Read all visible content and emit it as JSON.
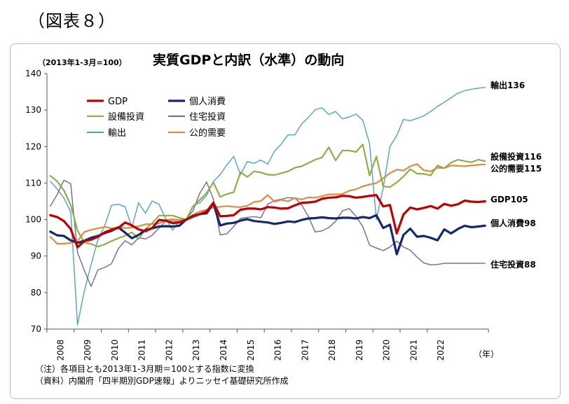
{
  "figure_label": "（図表８）",
  "notes": [
    "（注）各項目とも2013年1-3月期＝100とする指数に変換",
    "（資料）内閣府「四半期別GDP速報」よりニッセイ基礎研究所作成"
  ],
  "chart_data": {
    "type": "line",
    "title": "実質GDPと内訳（水準）の動向",
    "unit_label": "（2013年1-3月=100）",
    "xlabel": "（年）",
    "ylim": [
      70,
      140
    ],
    "y_ticks": [
      70,
      80,
      90,
      100,
      110,
      120,
      130,
      140
    ],
    "x_start": "2008Q1",
    "x_tick_labels": [
      "2008",
      "2009",
      "2010",
      "2011",
      "2012",
      "2013",
      "2014",
      "2015",
      "2016",
      "2017",
      "2018",
      "2019",
      "2020",
      "2021",
      "2022"
    ],
    "legend_position": "top-left",
    "grid": false,
    "series": [
      {
        "name": "GDP",
        "color": "#c00000",
        "width": 3.2,
        "end_label": "GDP105",
        "values": [
          101.2,
          100.7,
          99.6,
          97.4,
          92.4,
          94.1,
          94.5,
          95.3,
          96.5,
          97.2,
          97.7,
          99.2,
          98.4,
          97.3,
          96.8,
          97.7,
          99.9,
          99.7,
          99.0,
          99.2,
          100,
          100.8,
          101.5,
          102.2,
          104.6,
          100.9,
          101.0,
          101.2,
          102.7,
          103.0,
          103.0,
          102.8,
          103.4,
          103.3,
          103.0,
          103.1,
          103.9,
          104.6,
          104.7,
          104.9,
          105.7,
          106.0,
          106.1,
          106.5,
          106.4,
          106.0,
          106.2,
          106.5,
          106.7,
          103.6,
          104.0,
          96.2,
          101.4,
          103.3,
          102.8,
          103.2,
          103.7,
          103.0,
          104.3,
          103.8,
          104.2,
          105.2,
          104.9,
          104.8,
          105.0
        ]
      },
      {
        "name": "個人消費",
        "color": "#14286e",
        "width": 3.2,
        "end_label": "個人消費98",
        "values": [
          96.7,
          95.7,
          95.5,
          94.3,
          93.6,
          94.2,
          95.0,
          95.5,
          96.3,
          96.9,
          97.9,
          96.4,
          94.9,
          95.8,
          97.1,
          97.6,
          98.1,
          98.2,
          98.1,
          98.3,
          100,
          101.0,
          101.5,
          101.7,
          104.4,
          98.4,
          98.9,
          99.1,
          99.7,
          100.1,
          99.6,
          99.4,
          99.2,
          98.8,
          99.1,
          99.5,
          99.3,
          99.9,
          100.3,
          100.4,
          100.6,
          100.4,
          100.3,
          100.5,
          100.5,
          100.3,
          100.7,
          100.4,
          101.2,
          97.7,
          98.6,
          90.5,
          95.8,
          97.5,
          95.3,
          95.5,
          95.0,
          94.3,
          97.3,
          96.2,
          97.4,
          98.3,
          97.9,
          98.1,
          98.3
        ]
      },
      {
        "name": "設備投資",
        "color": "#8dae48",
        "width": 2.2,
        "end_label": "設備投資116",
        "values": [
          112.0,
          110.5,
          108.0,
          104.0,
          97.0,
          93.7,
          93.3,
          92.6,
          93.2,
          94.1,
          94.9,
          95.6,
          96.5,
          94.7,
          97.4,
          99.0,
          101.1,
          101.1,
          101.1,
          100.5,
          100,
          103.6,
          105.4,
          107.2,
          110.2,
          106.2,
          107.0,
          107.5,
          113.0,
          111.7,
          113.2,
          112.9,
          112.3,
          112.2,
          112.7,
          113.2,
          114.2,
          114.6,
          115.5,
          116.4,
          117.0,
          119.8,
          116.2,
          118.9,
          118.9,
          118.5,
          120.6,
          112.1,
          117.3,
          109.1,
          108.9,
          110.2,
          111.8,
          113.8,
          112.6,
          112.5,
          112.1,
          114.8,
          114.1,
          115.6,
          116.4,
          116.0,
          115.7,
          116.4,
          116.0
        ]
      },
      {
        "name": "住宅投資",
        "color": "#7b6493",
        "width": 1.4,
        "end_label": "住宅投資88",
        "values": [
          103.7,
          106.8,
          110.8,
          109.8,
          91.0,
          86.1,
          81.7,
          86.2,
          86.9,
          87.9,
          92.0,
          94.2,
          93.1,
          95.0,
          94.7,
          95.7,
          97.7,
          99.6,
          99.6,
          99.5,
          100,
          102.4,
          107.2,
          110.3,
          105.6,
          95.8,
          96.1,
          98.1,
          100.3,
          100.6,
          100.8,
          100.5,
          104.2,
          105.2,
          105.6,
          106.0,
          105.9,
          104.0,
          100.8,
          96.6,
          96.9,
          97.8,
          99.5,
          102.4,
          103.0,
          100.9,
          98.1,
          93.0,
          92.2,
          91.5,
          92.5,
          94.1,
          92.5,
          91.6,
          89.7,
          88.1,
          87.6,
          87.7,
          88.0,
          88.0,
          88.0,
          88.0,
          88.0,
          88.0,
          88.0
        ]
      },
      {
        "name": "輸出",
        "color": "#4ea3c5",
        "width": 1.4,
        "end_label": "輸出136",
        "values": [
          110.5,
          108.4,
          105.9,
          102.1,
          71.2,
          80.4,
          87.7,
          94.5,
          98.3,
          103.9,
          104.2,
          103.5,
          97.9,
          104.6,
          101.7,
          105.1,
          104.2,
          100.2,
          97.1,
          99.6,
          100,
          103.8,
          104.6,
          106.6,
          110.4,
          112.3,
          115.0,
          117.3,
          112.3,
          115.9,
          115.4,
          116.3,
          115.2,
          118.7,
          120.7,
          123.2,
          123.2,
          126.2,
          128.0,
          130.1,
          130.6,
          128.8,
          129.6,
          127.6,
          128.1,
          128.9,
          127.2,
          120.8,
          100.0,
          108.6,
          120.0,
          123.0,
          127.4,
          127.1,
          127.7,
          128.4,
          129.6,
          131.0,
          132.1,
          133.4,
          134.6,
          135.3,
          135.7,
          136.0,
          136.2
        ]
      },
      {
        "name": "公的需要",
        "color": "#e08b40",
        "width": 2.2,
        "end_label": "公的需要115",
        "values": [
          95.3,
          93.4,
          93.4,
          93.6,
          94.1,
          96.6,
          97.2,
          97.6,
          98.0,
          97.6,
          97.9,
          97.7,
          97.8,
          98.2,
          98.7,
          98.8,
          98.9,
          99.9,
          100.1,
          99.9,
          100,
          101.3,
          102.2,
          102.7,
          103.3,
          103.5,
          103.7,
          103.5,
          103.4,
          103.8,
          104.8,
          105.1,
          106.7,
          104.9,
          105.4,
          105.0,
          105.9,
          105.5,
          106.1,
          106.0,
          106.4,
          106.9,
          106.9,
          107.0,
          107.9,
          108.3,
          109.1,
          109.6,
          110.0,
          111.3,
          112.7,
          113.7,
          113.4,
          114.6,
          115.2,
          113.5,
          113.2,
          114.2,
          114.1,
          114.8,
          114.7,
          114.6,
          114.8,
          115.0,
          115.1
        ]
      }
    ]
  }
}
